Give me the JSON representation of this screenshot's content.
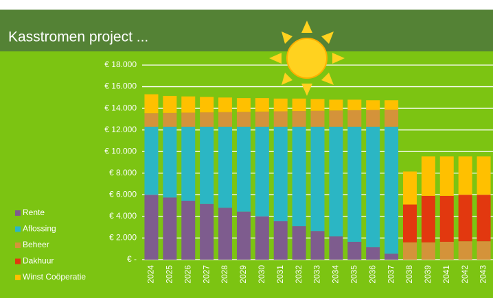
{
  "chart_data": {
    "type": "stacked-bar",
    "title": "Kasstromen project ...",
    "categories": [
      "2024",
      "2025",
      "2026",
      "2027",
      "2028",
      "2029",
      "2030",
      "2031",
      "2032",
      "2033",
      "2034",
      "2035",
      "2036",
      "2037",
      "2038",
      "2039",
      "2041",
      "2042",
      "2043"
    ],
    "series": [
      {
        "name": "Rente",
        "color": "#7e5c8e",
        "values": [
          6000,
          5750,
          5450,
          5150,
          4800,
          4450,
          4000,
          3550,
          3100,
          2650,
          2150,
          1650,
          1150,
          550,
          0,
          0,
          0,
          0,
          0
        ]
      },
      {
        "name": "Aflossing",
        "color": "#2bb6c4",
        "values": [
          6300,
          6550,
          6850,
          7150,
          7500,
          7850,
          8300,
          8750,
          9200,
          9650,
          10150,
          10650,
          11150,
          11750,
          0,
          0,
          0,
          0,
          0
        ]
      },
      {
        "name": "Beheer",
        "color": "#d4933a",
        "values": [
          1250,
          1275,
          1300,
          1325,
          1350,
          1375,
          1400,
          1425,
          1450,
          1475,
          1500,
          1525,
          1550,
          1575,
          1600,
          1600,
          1650,
          1700,
          1700
        ]
      },
      {
        "name": "Dakhuur",
        "color": "#e2380f",
        "values": [
          0,
          0,
          0,
          0,
          0,
          0,
          0,
          0,
          0,
          0,
          0,
          0,
          0,
          0,
          3500,
          4300,
          4250,
          4300,
          4300
        ]
      },
      {
        "name": "Winst Coöperatie",
        "color": "#ffc000",
        "values": [
          1750,
          1575,
          1500,
          1425,
          1350,
          1275,
          1250,
          1175,
          1150,
          1075,
          1000,
          975,
          900,
          875,
          3050,
          3650,
          3650,
          3550,
          3550
        ]
      }
    ],
    "ylim": [
      0,
      18000
    ],
    "yticks": [
      {
        "value": 0,
        "label": "€ -"
      },
      {
        "value": 2000,
        "label": "€ 2.000"
      },
      {
        "value": 4000,
        "label": "€ 4.000"
      },
      {
        "value": 6000,
        "label": "€ 6.000"
      },
      {
        "value": 8000,
        "label": "€ 8.000"
      },
      {
        "value": 10000,
        "label": "€ 10.000"
      },
      {
        "value": 12000,
        "label": "€ 12.000"
      },
      {
        "value": 14000,
        "label": "€ 14.000"
      },
      {
        "value": 16000,
        "label": "€ 16.000"
      },
      {
        "value": 18000,
        "label": "€ 18.000"
      }
    ],
    "grid": true,
    "legend": "bottom-left"
  }
}
